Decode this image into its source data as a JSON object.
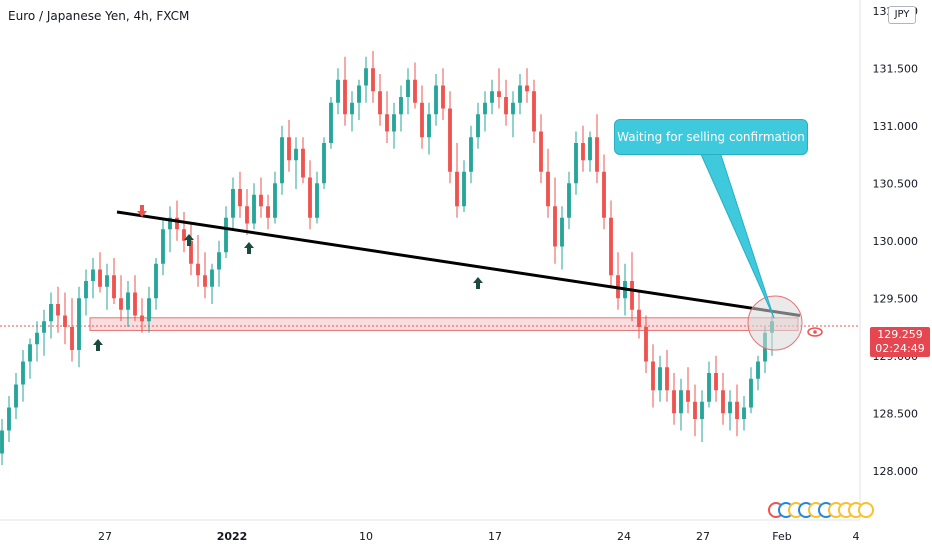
{
  "header": {
    "title": "Euro / Japanese Yen, 4h, FXCM",
    "currency_badge": "JPY"
  },
  "price_tag": {
    "price": "129.259",
    "countdown": "02:24:49",
    "color": "#e5464f"
  },
  "annotation": {
    "text": "Waiting for selling confirmation",
    "color": "#3ec9dd"
  },
  "colors": {
    "up_candle": "#26a69a",
    "down_candle": "#ef5350",
    "trendline": "#000000",
    "support_zone": "#f7c6c9",
    "arrow_up": "#1b4a3f",
    "arrow_down": "#ef5350"
  },
  "icons": {
    "trend_arrows": "arrow-up-icon",
    "sell_marker": "arrow-down-icon",
    "eye": "eye-icon"
  },
  "chart_data": {
    "type": "candlestick",
    "title": "Euro / Japanese Yen, 4h, FXCM",
    "xlabel": "",
    "ylabel": "",
    "ylim": [
      127.85,
      132.05
    ],
    "y_ticks": [
      "132.000",
      "131.500",
      "131.000",
      "130.500",
      "130.000",
      "129.500",
      "129.000",
      "128.500",
      "128.000"
    ],
    "x_ticks": [
      "27",
      "2022",
      "10",
      "17",
      "24",
      "27",
      "Feb",
      "4"
    ],
    "series": [
      {
        "values": [
          [
            128.15,
            128.45,
            128.05,
            128.35
          ],
          [
            128.35,
            128.65,
            128.25,
            128.55
          ],
          [
            128.55,
            128.85,
            128.45,
            128.75
          ],
          [
            128.75,
            129.05,
            128.6,
            128.95
          ],
          [
            128.95,
            129.15,
            128.8,
            129.1
          ],
          [
            129.1,
            129.3,
            128.95,
            129.2
          ],
          [
            129.2,
            129.4,
            129.0,
            129.3
          ],
          [
            129.3,
            129.55,
            129.15,
            129.45
          ],
          [
            129.45,
            129.6,
            129.2,
            129.35
          ],
          [
            129.35,
            129.55,
            129.1,
            129.25
          ],
          [
            129.25,
            129.5,
            128.95,
            129.05
          ],
          [
            129.05,
            129.6,
            128.9,
            129.5
          ],
          [
            129.5,
            129.75,
            129.35,
            129.65
          ],
          [
            129.65,
            129.85,
            129.5,
            129.75
          ],
          [
            129.75,
            129.9,
            129.55,
            129.6
          ],
          [
            129.6,
            129.8,
            129.4,
            129.7
          ],
          [
            129.7,
            129.85,
            129.45,
            129.5
          ],
          [
            129.5,
            129.7,
            129.3,
            129.4
          ],
          [
            129.4,
            129.65,
            129.25,
            129.55
          ],
          [
            129.55,
            129.7,
            129.3,
            129.35
          ],
          [
            129.35,
            129.5,
            129.2,
            129.3
          ],
          [
            129.3,
            129.6,
            129.2,
            129.5
          ],
          [
            129.5,
            129.85,
            129.4,
            129.8
          ],
          [
            129.8,
            130.2,
            129.7,
            130.1
          ],
          [
            130.1,
            130.3,
            129.9,
            130.2
          ],
          [
            130.2,
            130.35,
            130.0,
            130.1
          ],
          [
            130.1,
            130.25,
            129.9,
            130.0
          ],
          [
            130.0,
            130.15,
            129.7,
            129.8
          ],
          [
            129.8,
            130.05,
            129.6,
            129.7
          ],
          [
            129.7,
            129.9,
            129.5,
            129.6
          ],
          [
            129.6,
            129.8,
            129.45,
            129.75
          ],
          [
            129.75,
            130.0,
            129.6,
            129.9
          ],
          [
            129.9,
            130.3,
            129.85,
            130.2
          ],
          [
            130.2,
            130.55,
            130.1,
            130.45
          ],
          [
            130.45,
            130.6,
            130.2,
            130.3
          ],
          [
            130.3,
            130.45,
            130.05,
            130.15
          ],
          [
            130.15,
            130.5,
            130.1,
            130.4
          ],
          [
            130.4,
            130.55,
            130.2,
            130.3
          ],
          [
            130.3,
            130.4,
            130.1,
            130.2
          ],
          [
            130.2,
            130.6,
            130.15,
            130.5
          ],
          [
            130.5,
            131.0,
            130.4,
            130.9
          ],
          [
            130.9,
            131.05,
            130.6,
            130.7
          ],
          [
            130.7,
            130.9,
            130.45,
            130.8
          ],
          [
            130.8,
            130.9,
            130.5,
            130.55
          ],
          [
            130.55,
            130.7,
            130.1,
            130.2
          ],
          [
            130.2,
            130.6,
            130.15,
            130.5
          ],
          [
            130.5,
            130.9,
            130.45,
            130.85
          ],
          [
            130.85,
            131.25,
            130.8,
            131.2
          ],
          [
            131.2,
            131.5,
            131.1,
            131.4
          ],
          [
            131.4,
            131.6,
            131.0,
            131.1
          ],
          [
            131.1,
            131.3,
            130.95,
            131.2
          ],
          [
            131.2,
            131.4,
            131.05,
            131.35
          ],
          [
            131.35,
            131.6,
            131.2,
            131.5
          ],
          [
            131.5,
            131.65,
            131.2,
            131.3
          ],
          [
            131.3,
            131.45,
            131.0,
            131.1
          ],
          [
            131.1,
            131.3,
            130.85,
            130.95
          ],
          [
            130.95,
            131.2,
            130.8,
            131.1
          ],
          [
            131.1,
            131.35,
            130.95,
            131.25
          ],
          [
            131.25,
            131.5,
            131.1,
            131.4
          ],
          [
            131.4,
            131.55,
            131.15,
            131.2
          ],
          [
            131.2,
            131.35,
            130.8,
            130.9
          ],
          [
            130.9,
            131.2,
            130.75,
            131.1
          ],
          [
            131.1,
            131.45,
            131.0,
            131.35
          ],
          [
            131.35,
            131.5,
            131.05,
            131.15
          ],
          [
            131.15,
            131.3,
            130.5,
            130.6
          ],
          [
            130.6,
            130.85,
            130.2,
            130.3
          ],
          [
            130.3,
            130.7,
            130.25,
            130.6
          ],
          [
            130.6,
            131.0,
            130.5,
            130.9
          ],
          [
            130.9,
            131.2,
            130.8,
            131.1
          ],
          [
            131.1,
            131.3,
            130.95,
            131.2
          ],
          [
            131.2,
            131.4,
            131.1,
            131.3
          ],
          [
            131.3,
            131.5,
            131.15,
            131.25
          ],
          [
            131.25,
            131.4,
            131.0,
            131.1
          ],
          [
            131.1,
            131.3,
            130.9,
            131.2
          ],
          [
            131.2,
            131.45,
            131.1,
            131.35
          ],
          [
            131.35,
            131.5,
            131.2,
            131.3
          ],
          [
            131.3,
            131.4,
            130.85,
            130.95
          ],
          [
            130.95,
            131.1,
            130.5,
            130.6
          ],
          [
            130.6,
            130.8,
            130.2,
            130.3
          ],
          [
            130.3,
            130.55,
            129.8,
            129.95
          ],
          [
            129.95,
            130.3,
            129.75,
            130.2
          ],
          [
            130.2,
            130.6,
            130.1,
            130.5
          ],
          [
            130.5,
            130.95,
            130.4,
            130.85
          ],
          [
            130.85,
            131.0,
            130.6,
            130.7
          ],
          [
            130.7,
            130.95,
            130.6,
            130.9
          ],
          [
            130.9,
            131.1,
            130.5,
            130.6
          ],
          [
            130.6,
            130.75,
            130.1,
            130.2
          ],
          [
            130.2,
            130.35,
            129.6,
            129.7
          ],
          [
            129.7,
            129.9,
            129.4,
            129.5
          ],
          [
            129.5,
            129.8,
            129.35,
            129.65
          ],
          [
            129.65,
            129.9,
            129.3,
            129.4
          ],
          [
            129.4,
            129.55,
            129.15,
            129.25
          ],
          [
            129.25,
            129.35,
            128.85,
            128.95
          ],
          [
            128.95,
            129.1,
            128.55,
            128.7
          ],
          [
            128.7,
            129.0,
            128.6,
            128.9
          ],
          [
            128.9,
            129.05,
            128.6,
            128.7
          ],
          [
            128.7,
            128.85,
            128.4,
            128.5
          ],
          [
            128.5,
            128.8,
            128.35,
            128.7
          ],
          [
            128.7,
            128.9,
            128.5,
            128.6
          ],
          [
            128.6,
            128.75,
            128.3,
            128.45
          ],
          [
            128.45,
            128.7,
            128.25,
            128.6
          ],
          [
            128.6,
            128.95,
            128.55,
            128.85
          ],
          [
            128.85,
            129.0,
            128.6,
            128.7
          ],
          [
            128.7,
            128.85,
            128.4,
            128.5
          ],
          [
            128.5,
            128.7,
            128.35,
            128.6
          ],
          [
            128.6,
            128.75,
            128.3,
            128.45
          ],
          [
            128.45,
            128.65,
            128.35,
            128.55
          ],
          [
            128.55,
            128.9,
            128.5,
            128.8
          ],
          [
            128.8,
            129.0,
            128.7,
            128.95
          ],
          [
            128.95,
            129.25,
            128.85,
            129.2
          ],
          [
            129.2,
            129.35,
            129.0,
            129.3
          ]
        ]
      }
    ],
    "trendline": {
      "from": [
        0.12,
        130.25
      ],
      "to": [
        0.86,
        129.35
      ]
    },
    "support_zone": [
      129.22,
      129.33
    ],
    "current_price": 129.259,
    "legend": "none",
    "grid": false
  }
}
